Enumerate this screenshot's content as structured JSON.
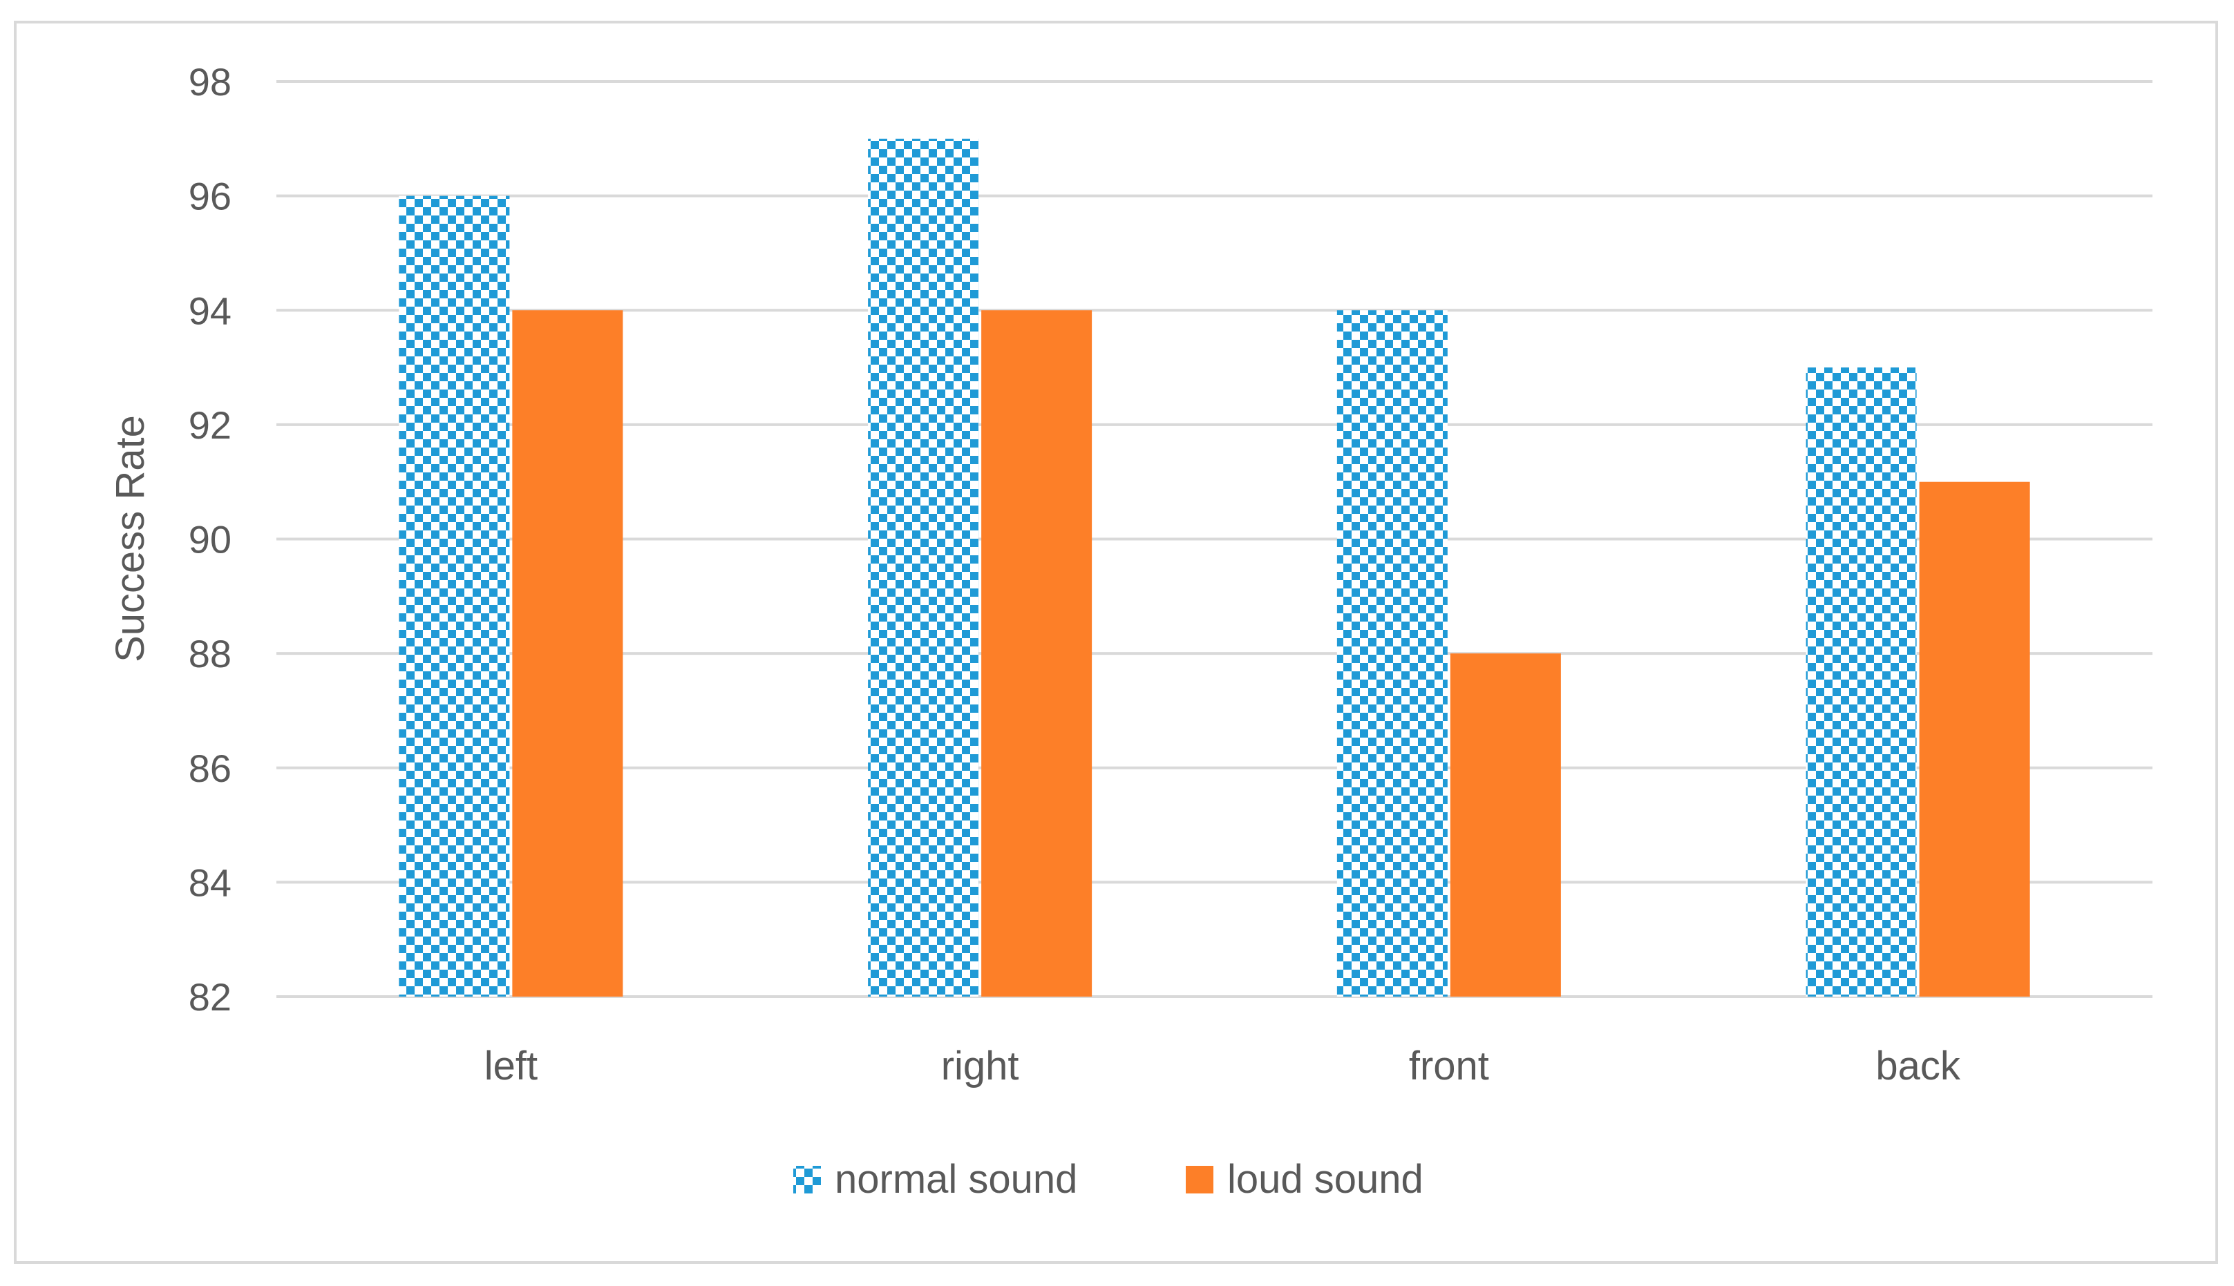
{
  "chart_data": {
    "type": "bar",
    "title": "",
    "xlabel": "",
    "ylabel": "Success Rate",
    "categories": [
      "left",
      "right",
      "front",
      "back"
    ],
    "series": [
      {
        "name": "normal sound",
        "values": [
          96,
          97,
          94,
          93
        ],
        "color": "#1f9ad6",
        "pattern": "checkerboard"
      },
      {
        "name": "loud sound",
        "values": [
          94,
          94,
          88,
          91
        ],
        "color": "#fd7f28",
        "pattern": "solid"
      }
    ],
    "ylim": [
      82,
      98
    ],
    "yticks": [
      "82",
      "84",
      "86",
      "88",
      "90",
      "92",
      "94",
      "96",
      "98"
    ],
    "grid": true,
    "legend_position": "bottom-center"
  }
}
